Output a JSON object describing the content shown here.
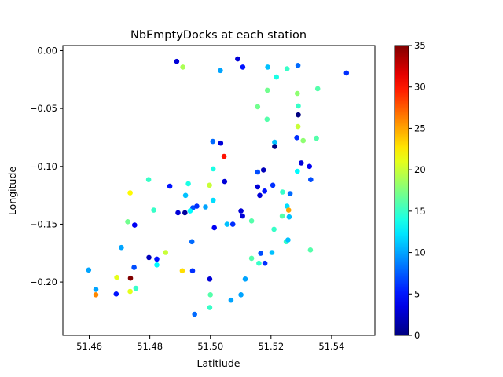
{
  "chart_data": {
    "type": "scatter",
    "title": "NbEmptyDocks at each station",
    "xlabel": "Latitiude",
    "ylabel": "Longitude",
    "xlim": [
      51.4513,
      51.5543
    ],
    "ylim": [
      -0.2461,
      0.0044
    ],
    "xticks": [
      51.46,
      51.48,
      51.5,
      51.52,
      51.54
    ],
    "xtick_labels": [
      "51.46",
      "51.48",
      "51.50",
      "51.52",
      "51.54"
    ],
    "yticks": [
      0.0,
      -0.05,
      -0.1,
      -0.15,
      -0.2
    ],
    "ytick_labels": [
      "0.00",
      "−0.05",
      "−0.10",
      "−0.15",
      "−0.20"
    ],
    "grid": false,
    "colorbar": {
      "colormap": "jet",
      "range": [
        0,
        35
      ],
      "ticks": [
        0,
        5,
        10,
        15,
        20,
        25,
        30,
        35
      ],
      "tick_labels": [
        "0",
        "5",
        "10",
        "15",
        "20",
        "25",
        "30",
        "35"
      ]
    },
    "points": [
      [
        51.509,
        -0.0072,
        3
      ],
      [
        51.4889,
        -0.0093,
        3
      ],
      [
        51.4909,
        -0.0142,
        19
      ],
      [
        51.5107,
        -0.0142,
        5
      ],
      [
        51.5033,
        -0.0172,
        10
      ],
      [
        51.5289,
        -0.0128,
        8
      ],
      [
        51.5189,
        -0.0142,
        11
      ],
      [
        51.5253,
        -0.0157,
        15
      ],
      [
        51.5218,
        -0.0228,
        14
      ],
      [
        51.5449,
        -0.0193,
        6
      ],
      [
        51.5188,
        -0.0342,
        17
      ],
      [
        51.5287,
        -0.037,
        18
      ],
      [
        51.5354,
        -0.0329,
        16
      ],
      [
        51.529,
        -0.0478,
        15
      ],
      [
        51.5156,
        -0.0485,
        17
      ],
      [
        51.5187,
        -0.0593,
        16
      ],
      [
        51.529,
        -0.0555,
        0
      ],
      [
        51.5289,
        -0.0656,
        20
      ],
      [
        51.5285,
        -0.0752,
        6
      ],
      [
        51.5306,
        -0.0778,
        18
      ],
      [
        51.535,
        -0.0757,
        16
      ],
      [
        51.5008,
        -0.0785,
        8
      ],
      [
        51.5034,
        -0.0799,
        3
      ],
      [
        51.5212,
        -0.0791,
        11
      ],
      [
        51.5212,
        -0.0828,
        0
      ],
      [
        51.5045,
        -0.0914,
        30
      ],
      [
        51.53,
        -0.097,
        3
      ],
      [
        51.5327,
        -0.1,
        4
      ],
      [
        51.5009,
        -0.1021,
        14
      ],
      [
        51.5156,
        -0.1049,
        7
      ],
      [
        51.5175,
        -0.1031,
        2
      ],
      [
        51.5287,
        -0.1043,
        13
      ],
      [
        51.4866,
        -0.1171,
        5
      ],
      [
        51.4927,
        -0.115,
        14
      ],
      [
        51.4997,
        -0.1163,
        20
      ],
      [
        51.5047,
        -0.1131,
        3
      ],
      [
        51.5156,
        -0.1177,
        3
      ],
      [
        51.5206,
        -0.1163,
        6
      ],
      [
        51.4735,
        -0.1229,
        22
      ],
      [
        51.4796,
        -0.1115,
        15
      ],
      [
        51.4918,
        -0.1251,
        11
      ],
      [
        51.5009,
        -0.1294,
        12
      ],
      [
        51.5163,
        -0.1251,
        3
      ],
      [
        51.5179,
        -0.1214,
        5
      ],
      [
        51.5238,
        -0.1222,
        15
      ],
      [
        51.5263,
        -0.1236,
        8
      ],
      [
        51.5331,
        -0.1115,
        7
      ],
      [
        51.4813,
        -0.1379,
        15
      ],
      [
        51.4893,
        -0.1401,
        3
      ],
      [
        51.4916,
        -0.1401,
        1
      ],
      [
        51.4942,
        -0.1358,
        7
      ],
      [
        51.4955,
        -0.1344,
        6
      ],
      [
        51.4984,
        -0.1351,
        10
      ],
      [
        51.4933,
        -0.1386,
        13
      ],
      [
        51.5013,
        -0.153,
        4
      ],
      [
        51.5055,
        -0.1501,
        11
      ],
      [
        51.5074,
        -0.1501,
        6
      ],
      [
        51.5101,
        -0.1386,
        3
      ],
      [
        51.5106,
        -0.143,
        3
      ],
      [
        51.5136,
        -0.1472,
        16
      ],
      [
        51.521,
        -0.1544,
        15
      ],
      [
        51.5237,
        -0.143,
        16
      ],
      [
        51.5253,
        -0.1344,
        12
      ],
      [
        51.5258,
        -0.1379,
        25
      ],
      [
        51.526,
        -0.1437,
        11
      ],
      [
        51.4727,
        -0.1479,
        17
      ],
      [
        51.475,
        -0.1508,
        4
      ],
      [
        51.4939,
        -0.1652,
        8
      ],
      [
        51.525,
        -0.1652,
        15
      ],
      [
        51.5256,
        -0.1637,
        11
      ],
      [
        51.533,
        -0.1723,
        16
      ],
      [
        51.4706,
        -0.1702,
        10
      ],
      [
        51.4797,
        -0.1788,
        2
      ],
      [
        51.4823,
        -0.1802,
        5
      ],
      [
        51.4852,
        -0.1745,
        20
      ],
      [
        51.5136,
        -0.1795,
        16
      ],
      [
        51.5166,
        -0.1752,
        7
      ],
      [
        51.5203,
        -0.1745,
        11
      ],
      [
        51.516,
        -0.1838,
        15
      ],
      [
        51.518,
        -0.1838,
        6
      ],
      [
        51.4598,
        -0.1896,
        10
      ],
      [
        51.4748,
        -0.1874,
        7
      ],
      [
        51.4823,
        -0.1852,
        13
      ],
      [
        51.4907,
        -0.1903,
        23
      ],
      [
        51.4941,
        -0.1903,
        6
      ],
      [
        51.4691,
        -0.196,
        21
      ],
      [
        51.4736,
        -0.1967,
        35
      ],
      [
        51.4998,
        -0.1974,
        3
      ],
      [
        51.5115,
        -0.1974,
        10
      ],
      [
        51.4622,
        -0.2063,
        10
      ],
      [
        51.4689,
        -0.2103,
        5
      ],
      [
        51.4735,
        -0.2081,
        21
      ],
      [
        51.4754,
        -0.2054,
        15
      ],
      [
        51.4622,
        -0.211,
        26
      ],
      [
        51.5,
        -0.211,
        16
      ],
      [
        51.5101,
        -0.211,
        10
      ],
      [
        51.5068,
        -0.2157,
        10
      ],
      [
        51.4998,
        -0.2221,
        15
      ],
      [
        51.4948,
        -0.2278,
        8
      ]
    ]
  }
}
